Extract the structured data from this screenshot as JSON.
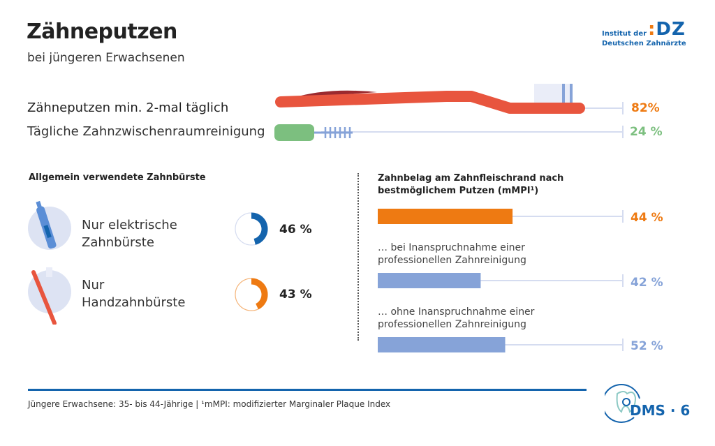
{
  "header": {
    "title": "Zähneputzen",
    "subtitle": "bei jüngeren Erwachsenen"
  },
  "logo": {
    "line1": "Institut der",
    "line2": "Deutschen Zahnärzte",
    "mark": "IDZ"
  },
  "chart_data": [
    {
      "type": "bar",
      "categories": [
        "Zähneputzen min. 2-mal täglich",
        "Tägliche Zahnzwischenraumreinigung"
      ],
      "values": [
        82,
        24
      ],
      "value_labels": [
        "82%",
        "24 %"
      ],
      "colors": [
        "#ee7a12",
        "#7cbf7f"
      ]
    },
    {
      "type": "pie",
      "title": "Allgemein verwendete Zahnbürste",
      "categories": [
        "Nur elektrische Zahnbürste",
        "Nur Handzahnbürste"
      ],
      "values": [
        46,
        43
      ],
      "value_labels": [
        "46 %",
        "43 %"
      ],
      "label_lines": [
        [
          "Nur elektrische",
          "Zahnbürste"
        ],
        [
          "Nur",
          "Handzahnbürste"
        ]
      ],
      "colors": [
        "#1464ad",
        "#ee7a12"
      ]
    },
    {
      "type": "bar",
      "title": "Zahnbelag am Zahnfleischrand nach bestmöglichem Putzen (mMPI¹)",
      "title_lines": [
        "Zahnbelag am Zahnfleischrand nach",
        "bestmöglichem Putzen (mMPI¹)"
      ],
      "categories": [
        "",
        "… bei Inanspruchnahme einer professionellen Zahnreinigung",
        "… ohne Inanspruchnahme einer professionellen Zahnreinigung"
      ],
      "label_lines": [
        [],
        [
          "… bei Inanspruchnahme einer",
          "professionellen Zahnreinigung"
        ],
        [
          "… ohne Inanspruchnahme einer",
          "professionellen Zahnreinigung"
        ]
      ],
      "values": [
        44,
        42,
        52
      ],
      "value_labels": [
        "44 %",
        "42 %",
        "52 %"
      ],
      "colors": [
        "#ee7a12",
        "#86a3d8",
        "#86a3d8"
      ]
    }
  ],
  "footer": {
    "note": "Jüngere Erwachsene: 35- bis 44-Jährige | ¹mMPI: modifizierter Marginaler Plaque Index",
    "badge": "DMS · 6"
  }
}
